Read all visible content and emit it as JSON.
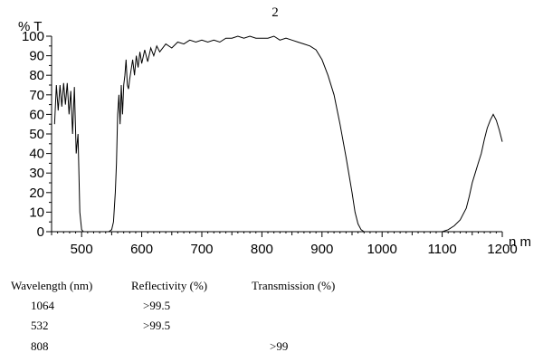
{
  "chart_data": {
    "type": "line",
    "title": "2",
    "ylabel": "% T",
    "xlabel": "n m",
    "xlim": [
      450,
      1200
    ],
    "ylim": [
      0,
      100
    ],
    "xticks": [
      500,
      600,
      700,
      800,
      900,
      1000,
      1100,
      1200
    ],
    "yticks": [
      0,
      5,
      10,
      15,
      20,
      25,
      30,
      35,
      40,
      45,
      50,
      55,
      60,
      65,
      70,
      75,
      80,
      85,
      90,
      95,
      100
    ],
    "grid": false,
    "series": [
      {
        "x": [
          455,
          458,
          461,
          464,
          467,
          470,
          473,
          476,
          479,
          482,
          485,
          488,
          491,
          494,
          497,
          500,
          503,
          506,
          509,
          512,
          515,
          520,
          530,
          540,
          545,
          550,
          553,
          556,
          558,
          560,
          562,
          564,
          566,
          568,
          570,
          572,
          574,
          576,
          578,
          580,
          582,
          585,
          588,
          591,
          594,
          597,
          600,
          605,
          610,
          615,
          620,
          625,
          630,
          640,
          650,
          660,
          670,
          680,
          690,
          700,
          710,
          720,
          730,
          740,
          750,
          760,
          770,
          780,
          790,
          800,
          810,
          820,
          830,
          840,
          850,
          860,
          870,
          880,
          890,
          900,
          910,
          920,
          930,
          940,
          950,
          955,
          960,
          965,
          970,
          975,
          980,
          985,
          990,
          995,
          1000,
          1010,
          1020,
          1040,
          1060,
          1080,
          1100,
          1110,
          1120,
          1130,
          1140,
          1145,
          1150,
          1155,
          1160,
          1165,
          1170,
          1175,
          1180,
          1185,
          1190,
          1195,
          1200
        ],
        "values": [
          55,
          75,
          62,
          75,
          64,
          76,
          65,
          76,
          60,
          72,
          50,
          74,
          40,
          50,
          10,
          1,
          0,
          0,
          0,
          0,
          0,
          0,
          0,
          0,
          0,
          1,
          5,
          20,
          35,
          60,
          70,
          55,
          75,
          60,
          75,
          80,
          88,
          75,
          73,
          78,
          82,
          88,
          80,
          90,
          84,
          92,
          86,
          93,
          87,
          94,
          90,
          95,
          92,
          96,
          94,
          97,
          96,
          98,
          97,
          98,
          97,
          98,
          97,
          99,
          99,
          100,
          99,
          100,
          99,
          99,
          99,
          100,
          98,
          99,
          98,
          97,
          96,
          95,
          93,
          88,
          80,
          70,
          55,
          38,
          20,
          10,
          4,
          1,
          0,
          0,
          0,
          0,
          0,
          0,
          0,
          0,
          0,
          0,
          0,
          0,
          0,
          1,
          3,
          6,
          12,
          18,
          25,
          30,
          35,
          40,
          47,
          53,
          57,
          60,
          57,
          52,
          46
        ]
      }
    ]
  },
  "table": {
    "headers": [
      "Wavelength (nm)",
      "Reflectivity (%)",
      "Transmission (%)"
    ],
    "rows": [
      [
        "1064",
        ">99.5",
        ""
      ],
      [
        "532",
        ">99.5",
        ""
      ],
      [
        "808",
        "",
        ">99"
      ]
    ]
  }
}
